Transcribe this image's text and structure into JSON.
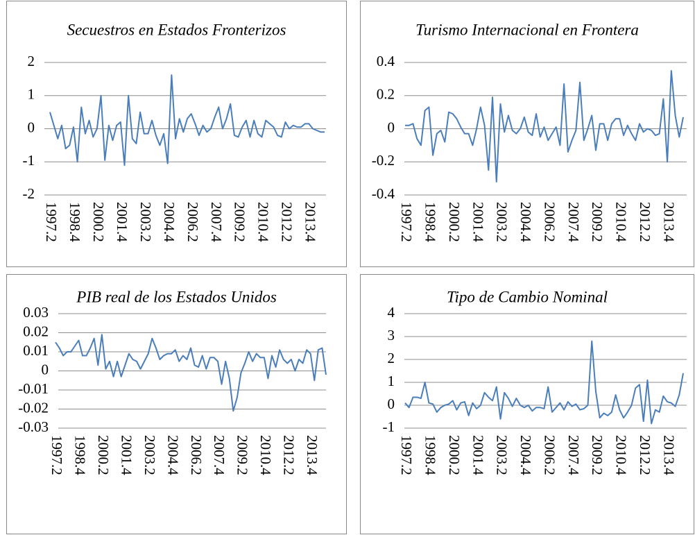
{
  "chart_data": [
    {
      "type": "line",
      "title": "Secuestros en Estados Fronterizos",
      "color": "#4a7ebb",
      "grid": true,
      "categories": [
        "1997.2",
        null,
        null,
        null,
        null,
        null,
        "1998.4",
        null,
        null,
        null,
        null,
        null,
        "2000.2",
        null,
        null,
        null,
        null,
        null,
        "2001.4",
        null,
        null,
        null,
        null,
        null,
        "2003.2",
        null,
        null,
        null,
        null,
        null,
        "2004.4",
        null,
        null,
        null,
        null,
        null,
        "2006.2",
        null,
        null,
        null,
        null,
        null,
        "2007.4",
        null,
        null,
        null,
        null,
        null,
        "2009.2",
        null,
        null,
        null,
        null,
        null,
        "2010.4",
        null,
        null,
        null,
        null,
        null,
        "2012.2",
        null,
        null,
        null,
        null,
        null,
        "2013.4",
        null,
        null,
        null,
        null
      ],
      "values": [
        0.5,
        0.1,
        -0.3,
        0.1,
        -0.6,
        -0.5,
        0.05,
        -1.0,
        0.65,
        -0.15,
        0.25,
        -0.25,
        0.0,
        1.0,
        -0.95,
        0.1,
        -0.35,
        0.1,
        0.2,
        -1.1,
        1.0,
        -0.3,
        -0.45,
        0.5,
        -0.15,
        -0.15,
        0.25,
        -0.2,
        -0.5,
        -0.15,
        -1.05,
        1.62,
        -0.3,
        0.3,
        -0.1,
        0.3,
        0.45,
        0.15,
        -0.2,
        0.1,
        -0.1,
        0.0,
        0.35,
        0.65,
        0.0,
        0.3,
        0.75,
        -0.2,
        -0.25,
        0.05,
        0.25,
        -0.25,
        0.25,
        -0.15,
        -0.25,
        0.25,
        0.15,
        0.05,
        -0.2,
        -0.25,
        0.2,
        0.0,
        0.1,
        0.05,
        0.05,
        0.15,
        0.15,
        0.0,
        -0.05,
        -0.1,
        -0.1
      ],
      "ylim": [
        -2,
        2
      ],
      "yticks": [
        -2,
        -1,
        0,
        1,
        2
      ]
    },
    {
      "type": "line",
      "title": "Turismo Internacional en Frontera",
      "color": "#4a7ebb",
      "grid": true,
      "categories": [
        "1997.2",
        null,
        null,
        null,
        null,
        null,
        "1998.4",
        null,
        null,
        null,
        null,
        null,
        "2000.2",
        null,
        null,
        null,
        null,
        null,
        "2001.4",
        null,
        null,
        null,
        null,
        null,
        "2003.2",
        null,
        null,
        null,
        null,
        null,
        "2004.4",
        null,
        null,
        null,
        null,
        null,
        "2006.2",
        null,
        null,
        null,
        null,
        null,
        "2007.4",
        null,
        null,
        null,
        null,
        null,
        "2009.2",
        null,
        null,
        null,
        null,
        null,
        "2010.4",
        null,
        null,
        null,
        null,
        null,
        "2012.2",
        null,
        null,
        null,
        null,
        null,
        "2013.4",
        null,
        null,
        null,
        null
      ],
      "values": [
        0.02,
        0.02,
        0.03,
        -0.06,
        -0.1,
        0.11,
        0.13,
        -0.16,
        -0.03,
        -0.01,
        -0.08,
        0.1,
        0.09,
        0.06,
        0.01,
        -0.03,
        -0.03,
        -0.1,
        0.0,
        0.13,
        0.02,
        -0.25,
        0.19,
        -0.32,
        0.15,
        -0.02,
        0.08,
        -0.01,
        -0.03,
        0.0,
        0.07,
        -0.02,
        -0.04,
        0.09,
        -0.05,
        0.01,
        -0.07,
        -0.03,
        0.01,
        -0.1,
        0.27,
        -0.14,
        -0.07,
        -0.01,
        0.28,
        -0.07,
        0.0,
        0.08,
        -0.13,
        0.03,
        0.03,
        -0.07,
        0.03,
        0.06,
        0.06,
        -0.04,
        0.02,
        -0.03,
        -0.07,
        0.03,
        -0.02,
        0.0,
        -0.01,
        -0.04,
        -0.03,
        0.18,
        -0.2,
        0.35,
        0.08,
        -0.05,
        0.07
      ],
      "ylim": [
        -0.4,
        0.4
      ],
      "yticks": [
        -0.4,
        -0.2,
        0,
        0.2,
        0.4
      ]
    },
    {
      "type": "line",
      "title": "PIB real de los Estados Unidos",
      "color": "#4a7ebb",
      "grid": true,
      "categories": [
        "1997.2",
        null,
        null,
        null,
        null,
        null,
        "1998.4",
        null,
        null,
        null,
        null,
        null,
        "2000.2",
        null,
        null,
        null,
        null,
        null,
        "2001.4",
        null,
        null,
        null,
        null,
        null,
        "2003.2",
        null,
        null,
        null,
        null,
        null,
        "2004.4",
        null,
        null,
        null,
        null,
        null,
        "2006.2",
        null,
        null,
        null,
        null,
        null,
        "2007.4",
        null,
        null,
        null,
        null,
        null,
        "2009.2",
        null,
        null,
        null,
        null,
        null,
        "2010.4",
        null,
        null,
        null,
        null,
        null,
        "2012.2",
        null,
        null,
        null,
        null,
        null,
        "2013.4",
        null,
        null,
        null,
        null
      ],
      "values": [
        0.015,
        0.012,
        0.008,
        0.01,
        0.01,
        0.013,
        0.016,
        0.008,
        0.008,
        0.012,
        0.017,
        0.003,
        0.019,
        0.001,
        0.005,
        -0.003,
        0.005,
        -0.003,
        0.003,
        0.009,
        0.006,
        0.005,
        0.001,
        0.005,
        0.009,
        0.017,
        0.012,
        0.006,
        0.008,
        0.009,
        0.009,
        0.011,
        0.005,
        0.008,
        0.006,
        0.012,
        0.003,
        0.002,
        0.008,
        0.001,
        0.007,
        0.007,
        0.005,
        -0.007,
        0.005,
        -0.004,
        -0.021,
        -0.014,
        -0.001,
        0.004,
        0.01,
        0.005,
        0.009,
        0.007,
        0.007,
        -0.004,
        0.008,
        0.002,
        0.011,
        0.006,
        0.004,
        0.006,
        0.0,
        0.006,
        0.004,
        0.011,
        0.009,
        -0.005,
        0.011,
        0.012,
        -0.002
      ],
      "ylim": [
        -0.03,
        0.03
      ],
      "yticks": [
        -0.03,
        -0.02,
        -0.01,
        0,
        0.01,
        0.02,
        0.03
      ]
    },
    {
      "type": "line",
      "title": "Tipo de Cambio Nominal",
      "color": "#4a7ebb",
      "grid": true,
      "categories": [
        "1997.2",
        null,
        null,
        null,
        null,
        null,
        "1998.4",
        null,
        null,
        null,
        null,
        null,
        "2000.2",
        null,
        null,
        null,
        null,
        null,
        "2001.4",
        null,
        null,
        null,
        null,
        null,
        "2003.2",
        null,
        null,
        null,
        null,
        null,
        "2004.4",
        null,
        null,
        null,
        null,
        null,
        "2006.2",
        null,
        null,
        null,
        null,
        null,
        "2007.4",
        null,
        null,
        null,
        null,
        null,
        "2009.2",
        null,
        null,
        null,
        null,
        null,
        "2010.4",
        null,
        null,
        null,
        null,
        null,
        "2012.2",
        null,
        null,
        null,
        null,
        null,
        "2013.4",
        null,
        null,
        null,
        null
      ],
      "values": [
        0.1,
        -0.1,
        0.35,
        0.35,
        0.3,
        1.0,
        0.1,
        0.05,
        -0.3,
        -0.1,
        0.0,
        0.05,
        0.2,
        -0.2,
        0.1,
        0.15,
        -0.45,
        0.1,
        -0.15,
        0.0,
        0.55,
        0.35,
        0.2,
        0.8,
        -0.6,
        0.55,
        0.3,
        -0.05,
        0.3,
        0.0,
        -0.1,
        0.0,
        -0.25,
        -0.1,
        -0.1,
        -0.15,
        0.8,
        -0.3,
        -0.1,
        0.1,
        -0.2,
        0.15,
        -0.05,
        0.05,
        -0.2,
        -0.15,
        0.0,
        2.8,
        0.6,
        -0.55,
        -0.35,
        -0.45,
        -0.3,
        0.45,
        -0.2,
        -0.55,
        -0.3,
        0.0,
        0.75,
        0.9,
        -0.7,
        1.1,
        -0.8,
        -0.2,
        -0.3,
        0.4,
        0.15,
        0.1,
        -0.05,
        0.45,
        1.4
      ],
      "ylim": [
        -1,
        4
      ],
      "yticks": [
        -1,
        0,
        1,
        2,
        3,
        4
      ]
    }
  ]
}
